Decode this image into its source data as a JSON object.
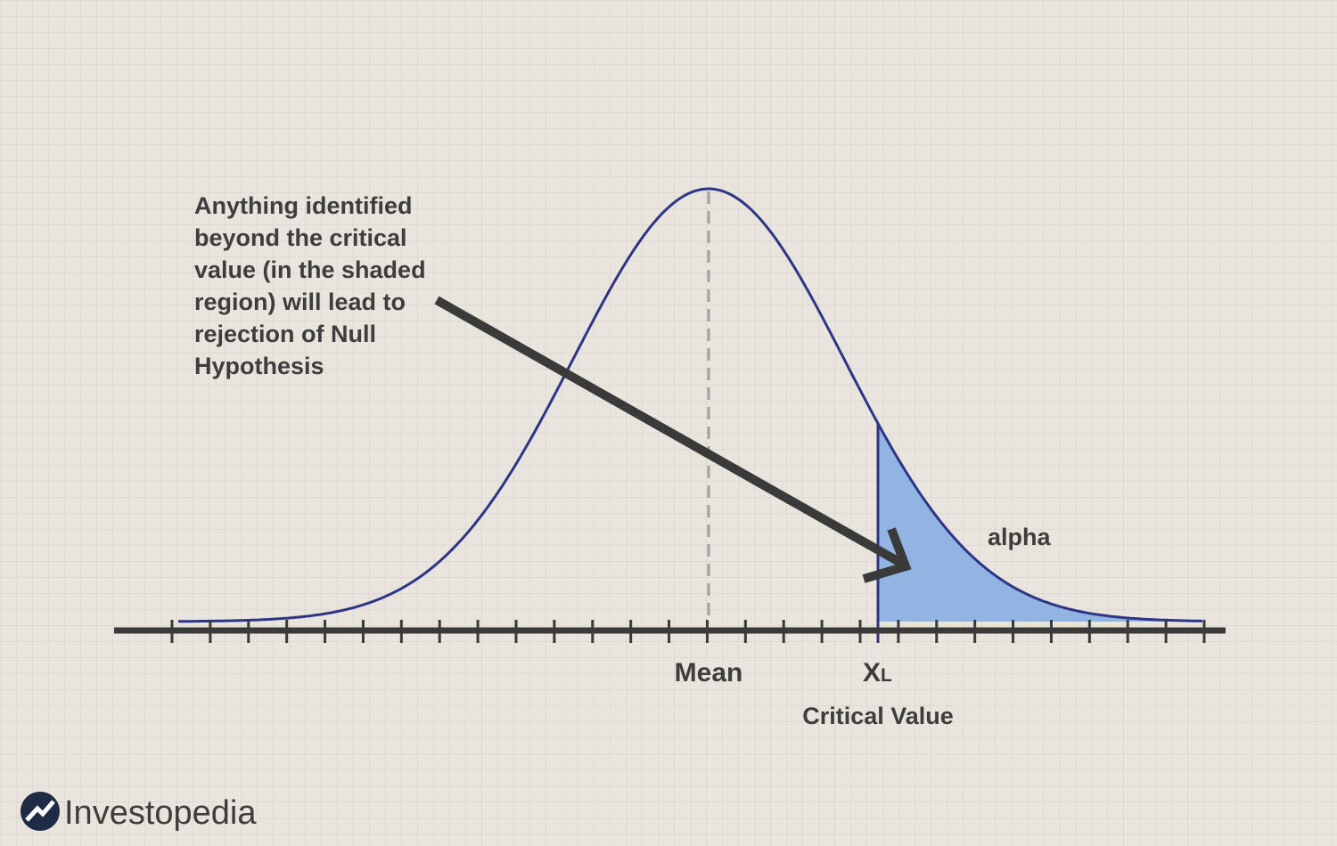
{
  "annotation": {
    "lines": [
      "Anything identified",
      "beyond the critical",
      "value (in the shaded",
      "region) will lead to",
      "rejection of Null",
      "Hypothesis"
    ]
  },
  "labels": {
    "mean": "Mean",
    "critical_symbol": "X",
    "critical_subscript": "L",
    "critical_value": "Critical Value",
    "alpha": "alpha"
  },
  "brand": "Investopedia"
}
